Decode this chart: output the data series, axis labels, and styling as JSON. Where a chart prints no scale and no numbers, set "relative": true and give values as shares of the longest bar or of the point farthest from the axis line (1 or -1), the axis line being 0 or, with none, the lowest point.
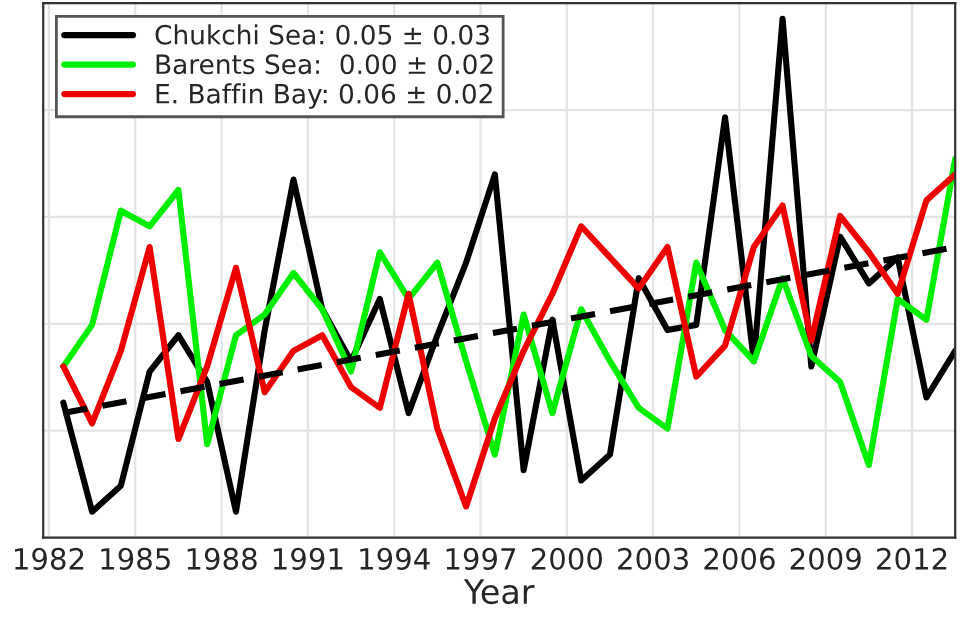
{
  "chart_data": {
    "type": "line",
    "xlabel": "Year",
    "relative": true,
    "x": [
      1982.5,
      1983.5,
      1984.5,
      1985.5,
      1986.5,
      1987.5,
      1988.5,
      1989.5,
      1990.5,
      1991.5,
      1992.5,
      1993.5,
      1994.5,
      1995.5,
      1996.5,
      1997.5,
      1998.5,
      1999.5,
      2000.5,
      2001.5,
      2002.5,
      2003.5,
      2004.5,
      2005.5,
      2006.5,
      2007.5,
      2008.5,
      2009.5,
      2010.5,
      2011.5,
      2012.5,
      2013.5
    ],
    "xlim": [
      1981.8,
      2013.5
    ],
    "xticks": [
      1982,
      1985,
      1988,
      1991,
      1994,
      1997,
      2000,
      2003,
      2006,
      2009,
      2012
    ],
    "series": [
      {
        "name": "Chukchi Sea: 0.05 ± 0.03",
        "color": "#000000",
        "values": [
          0.26,
          0.05,
          0.1,
          0.32,
          0.39,
          0.3,
          0.05,
          0.4,
          0.69,
          0.44,
          0.34,
          0.46,
          0.24,
          0.39,
          0.53,
          0.7,
          0.13,
          0.42,
          0.11,
          0.16,
          0.5,
          0.4,
          0.41,
          0.81,
          0.34,
          1.0,
          0.33,
          0.58,
          0.49,
          0.54,
          0.27,
          0.36
        ]
      },
      {
        "name": "Barents Sea:  0.00 ± 0.02",
        "color": "#00ee00",
        "values": [
          0.33,
          0.41,
          0.63,
          0.6,
          0.67,
          0.18,
          0.39,
          0.43,
          0.51,
          0.44,
          0.32,
          0.55,
          0.46,
          0.53,
          0.34,
          0.16,
          0.43,
          0.24,
          0.44,
          0.34,
          0.25,
          0.21,
          0.53,
          0.4,
          0.34,
          0.5,
          0.35,
          0.3,
          0.14,
          0.46,
          0.42,
          0.73
        ]
      },
      {
        "name": "E. Baffin Bay: 0.06 ± 0.02",
        "color": "#ee0000",
        "values": [
          0.33,
          0.22,
          0.36,
          0.56,
          0.19,
          0.33,
          0.52,
          0.28,
          0.36,
          0.39,
          0.29,
          0.25,
          0.47,
          0.21,
          0.06,
          0.23,
          0.36,
          0.47,
          0.6,
          0.54,
          0.48,
          0.56,
          0.31,
          0.37,
          0.56,
          0.64,
          0.38,
          0.62,
          0.55,
          0.47,
          0.65,
          0.7
        ]
      },
      {
        "type": "line",
        "color": "#000000",
        "line_style": "dashed",
        "x": [
          1982.5,
          2013.5
        ],
        "values": [
          0.24,
          0.56
        ]
      }
    ],
    "grid": true,
    "legend": "top left"
  }
}
